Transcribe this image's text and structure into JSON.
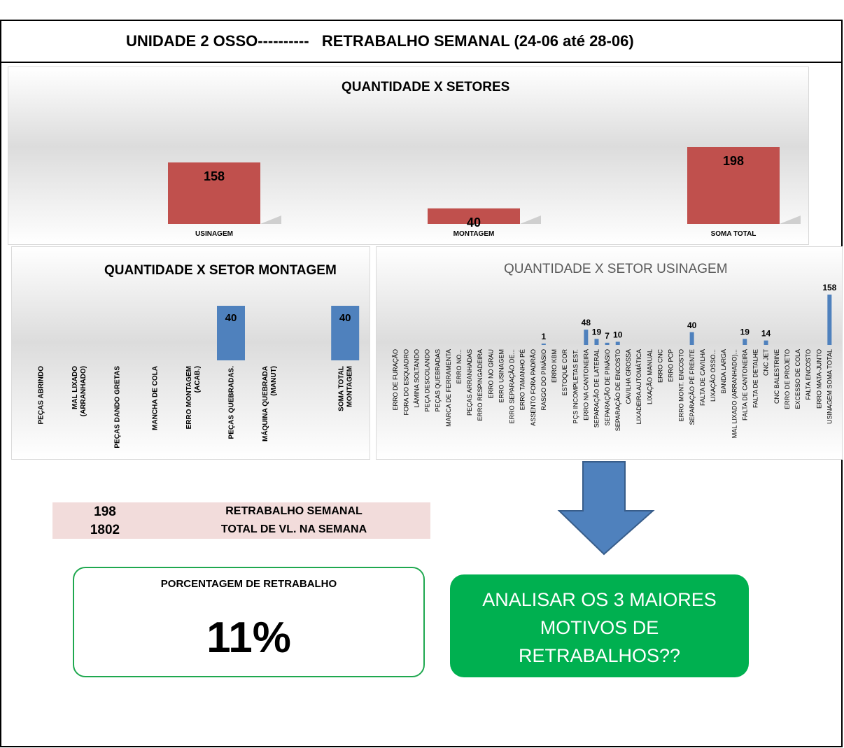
{
  "header": {
    "title": "UNIDADE 2 OSSO----------   RETRABALHO SEMANAL (24-06 até 28-06)"
  },
  "summary": {
    "row1": {
      "value": "198",
      "label": "RETRABALHO SEMANAL"
    },
    "row2": {
      "value": "1802",
      "label": "TOTAL DE VL. NA SEMANA"
    }
  },
  "percentage": {
    "label": "PORCENTAGEM DE RETRABALHO",
    "value": "11%"
  },
  "callout": {
    "text": "ANALISAR OS 3 MAIORES MOTIVOS DE RETRABALHOS??"
  },
  "colors": {
    "red_bar": "#c0504d",
    "blue_bar": "#4f81bd",
    "green": "#00b050",
    "arrow": "#4f81bd",
    "summary_bg": "#f2dcdb"
  },
  "chart_data": [
    {
      "type": "bar",
      "title": "QUANTIDADE X SETORES",
      "categories": [
        "USINAGEM",
        "MONTAGEM",
        "SOMA TOTAL"
      ],
      "values": [
        158,
        40,
        198
      ],
      "ylim": [
        0,
        198
      ],
      "grid": false,
      "legend": "none"
    },
    {
      "type": "bar",
      "title": "QUANTIDADE X SETOR MONTAGEM",
      "categories": [
        "PEÇAS ABRINDO",
        "MAL LIXADO (ARRANHADO)",
        "PEÇAS DANDO GRETAS",
        "MANCHA DE COLA",
        "ERRO MONTAGEM (ACAB.)",
        "PEÇAS QUEBRADAS.",
        "MÁQUINA QUEBRADA (MANUT)",
        "",
        "SOMA TOTAL MONTAGEM"
      ],
      "values": [
        null,
        null,
        null,
        null,
        null,
        40,
        null,
        null,
        40
      ],
      "ylim": [
        0,
        40
      ],
      "grid": false,
      "legend": "none"
    },
    {
      "type": "bar",
      "title": "QUANTIDADE X SETOR USINAGEM",
      "categories": [
        "ERRO DE FURAÇÃO",
        "FORA DO ESQUADRO",
        "LÂMINA SOLTANDO",
        "PEÇA DESCOLANDO",
        "PEÇAS QUEBRADAS",
        "MARCA DE FERRAMENTA",
        "ERRO NO...",
        "PEÇAS ARRANHADAS",
        "ERRO RESPINGADEIRA",
        "ERRO NO GRAU",
        "ERRO USINAGEM",
        "ERRO SEPARAÇÃO DE...",
        "ERRO TAMANHO PÉ",
        "ASSENTO FORA PADRÃO",
        "RASGO DO PINÁSIO",
        "ERRO KBM",
        "ESTOQUE COR",
        "PÇS INCOMPLETAS EST.",
        "ERRO NA CANTONEIRA",
        "SEPARAÇÃO DE LATERAL",
        "SEPARAÇÃO DE PINÁSIO",
        "SEPARAÇÃO DE ENCOSTO",
        "CAVILHA GROSSA",
        "LIXADEIRA AUTOMÁTICA",
        "LIXAÇÃO MANUAL",
        "ERRO CNC",
        "ERRO PCP",
        "ERRO MONT. ENCOSTO",
        "SEPARAÇÃO PÉ FRENTE",
        "FALTA DE CAVILHA",
        "LIXAÇÃO OSSO...",
        "BANDA LARGA",
        "MAL LIXADO (ARRANHADO)...",
        "FALTA DE CANTONEIRA",
        "FALTA DE DETALHE",
        "CNC JET",
        "CNC BALESTRINE",
        "ERRO DE PROJETO",
        "EXCESSO DE COLA",
        "FALTA ENCOSTO",
        "ERRO MATA-JUNTO",
        "USINAGEM SOMA TOTAL"
      ],
      "values": [
        null,
        null,
        null,
        null,
        null,
        null,
        null,
        null,
        null,
        null,
        null,
        null,
        null,
        null,
        1,
        null,
        null,
        null,
        48,
        19,
        7,
        10,
        null,
        null,
        null,
        null,
        null,
        null,
        40,
        null,
        null,
        null,
        null,
        19,
        null,
        14,
        null,
        null,
        null,
        null,
        null,
        158
      ],
      "ylim": [
        0,
        158
      ],
      "grid": false,
      "legend": "none"
    }
  ]
}
